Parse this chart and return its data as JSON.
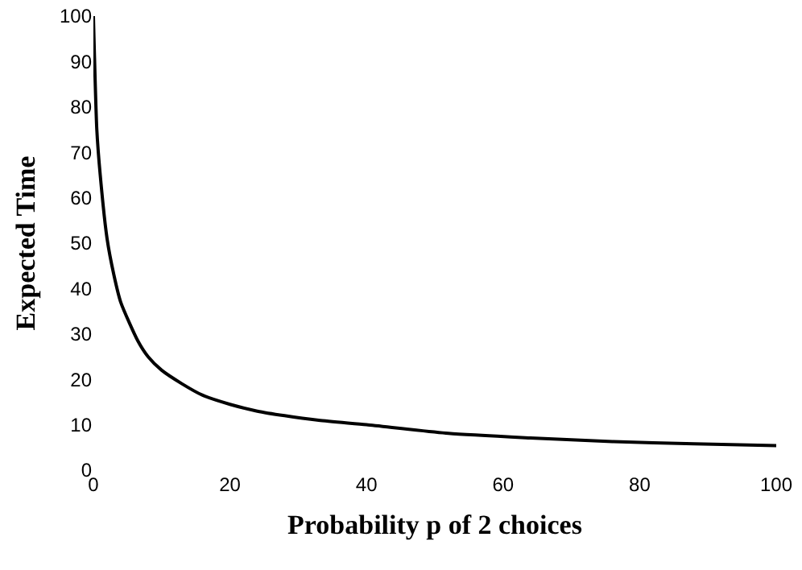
{
  "chart_data": {
    "type": "line",
    "xlabel": "Probability p of 2 choices",
    "ylabel": "Expected Time",
    "x": [
      0,
      0.5,
      1,
      2,
      3,
      4,
      6.5,
      8,
      10,
      13,
      16,
      20,
      24,
      28,
      33,
      40,
      52,
      64,
      76,
      88,
      100
    ],
    "series": [
      {
        "color": "#000000",
        "values": [
          100,
          75,
          65,
          51,
          43,
          37,
          28.5,
          25,
          22,
          19,
          16.5,
          14.5,
          13,
          12,
          11,
          10,
          8.1,
          7.1,
          6.3,
          5.8,
          5.4
        ]
      }
    ],
    "xlim": [
      0,
      100
    ],
    "xticks": [
      0,
      20,
      40,
      60,
      80,
      100
    ],
    "ylim": [
      0,
      100
    ],
    "yticks": [
      0,
      10,
      20,
      30,
      40,
      50,
      60,
      70,
      80,
      90,
      100
    ],
    "grid": false,
    "marker": "none",
    "line_style": "solid"
  }
}
